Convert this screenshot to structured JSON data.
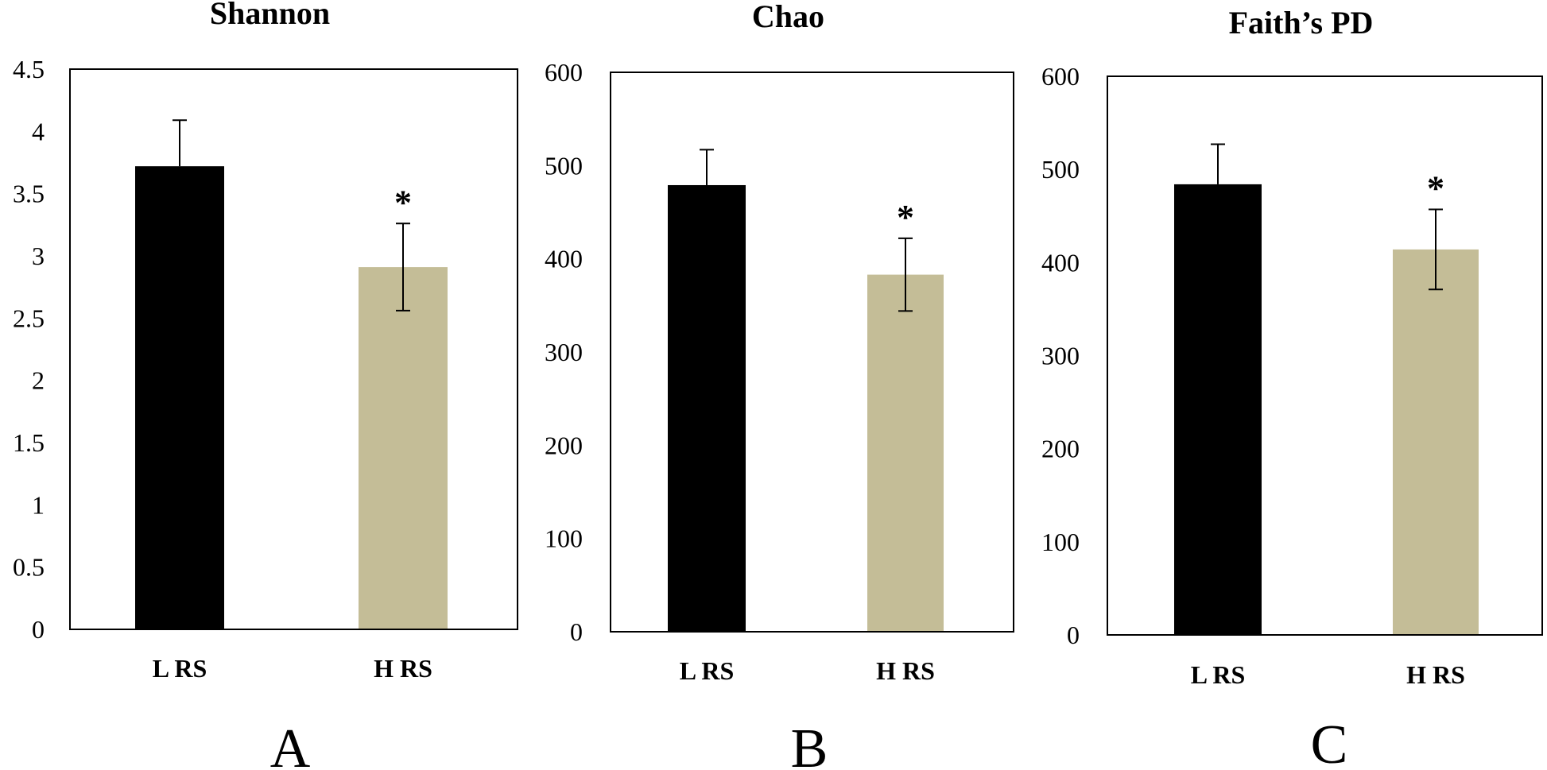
{
  "colors": {
    "bar_low": "#000000",
    "bar_high": "#c4bd97",
    "axis": "#000000"
  },
  "chart_data": [
    {
      "type": "bar",
      "panel_label": "A",
      "title": "Shannon",
      "categories": [
        "L RS",
        "H RS"
      ],
      "values": [
        3.72,
        2.91
      ],
      "errors": [
        0.37,
        0.35
      ],
      "significance": [
        "",
        "*"
      ],
      "ylim": [
        0,
        4.5
      ],
      "yticks": [
        0,
        0.5,
        1,
        1.5,
        2,
        2.5,
        3,
        3.5,
        4,
        4.5
      ],
      "ytick_labels": [
        "0",
        "0.5",
        "1",
        "1.5",
        "2",
        "2.5",
        "3",
        "3.5",
        "4",
        "4.5"
      ],
      "xlabel": "",
      "ylabel": "",
      "grid": false
    },
    {
      "type": "bar",
      "panel_label": "B",
      "title": "Chao",
      "categories": [
        "L RS",
        "H RS"
      ],
      "values": [
        479,
        383
      ],
      "errors": [
        38,
        39
      ],
      "significance": [
        "",
        "*"
      ],
      "ylim": [
        0,
        600
      ],
      "yticks": [
        0,
        100,
        200,
        300,
        400,
        500,
        600
      ],
      "ytick_labels": [
        "0",
        "100",
        "200",
        "300",
        "400",
        "500",
        "600"
      ],
      "xlabel": "",
      "ylabel": "",
      "grid": false
    },
    {
      "type": "bar",
      "panel_label": "C",
      "title": "Faith’s PD",
      "categories": [
        "L RS",
        "H RS"
      ],
      "values": [
        484,
        414
      ],
      "errors": [
        43,
        43
      ],
      "significance": [
        "",
        "*"
      ],
      "ylim": [
        0,
        600
      ],
      "yticks": [
        0,
        100,
        200,
        300,
        400,
        500,
        600
      ],
      "ytick_labels": [
        "0",
        "100",
        "200",
        "300",
        "400",
        "500",
        "600"
      ],
      "xlabel": "",
      "ylabel": "",
      "grid": false
    }
  ]
}
